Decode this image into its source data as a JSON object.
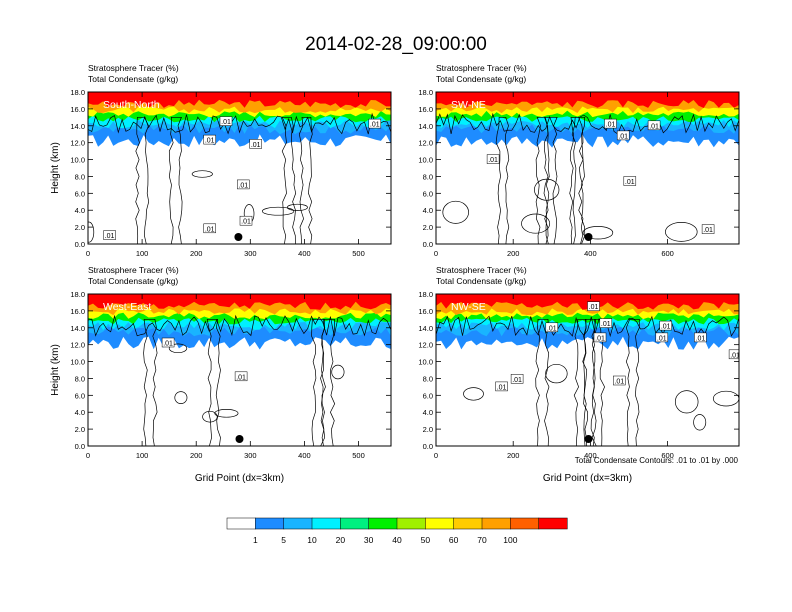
{
  "figure": {
    "title": "2014-02-28_09:00:00"
  },
  "chart_data": [
    {
      "type": "heatmap",
      "label": "South-North",
      "field_titles": [
        "Stratosphere Tracer   (%)",
        "Total Condensate   (g/kg)"
      ],
      "xlabel": "",
      "ylabel": "Height (km)",
      "xlim": [
        0,
        560
      ],
      "ylim": [
        0,
        18
      ],
      "xticks": [
        0,
        100,
        200,
        300,
        400,
        500
      ],
      "yticks": [
        "0.0",
        "2.0",
        "4.0",
        "6.0",
        "8.0",
        "10.0",
        "12.0",
        "14.0",
        "16.0",
        "18.0"
      ],
      "marker_x": 278,
      "contour_labels": [
        {
          "text": ".01",
          "x": 40,
          "y": 1.0
        },
        {
          "text": ".01",
          "x": 225,
          "y": 1.8
        },
        {
          "text": ".01",
          "x": 292,
          "y": 2.7
        },
        {
          "text": ".01",
          "x": 255,
          "y": 14.5
        },
        {
          "text": ".01",
          "x": 310,
          "y": 11.8
        },
        {
          "text": ".01",
          "x": 287,
          "y": 7.0
        },
        {
          "text": ".01",
          "x": 225,
          "y": 12.3
        },
        {
          "text": ".01",
          "x": 530,
          "y": 14.2
        }
      ]
    },
    {
      "type": "heatmap",
      "label": "SW-NE",
      "field_titles": [
        "Stratosphere Tracer   (%)",
        "Total Condensate   (g/kg)"
      ],
      "xlabel": "",
      "ylabel": "",
      "xlim": [
        0,
        785
      ],
      "ylim": [
        0,
        18
      ],
      "xticks": [
        0,
        200,
        400,
        600
      ],
      "yticks": [
        "0.0",
        "2.0",
        "4.0",
        "6.0",
        "8.0",
        "10.0",
        "12.0",
        "14.0",
        "16.0",
        "18.0"
      ],
      "marker_x": 395,
      "contour_labels": [
        {
          "text": ".01",
          "x": 148,
          "y": 10.0
        },
        {
          "text": ".01",
          "x": 452,
          "y": 14.2
        },
        {
          "text": ".01",
          "x": 485,
          "y": 12.8
        },
        {
          "text": ".01",
          "x": 565,
          "y": 14.0
        },
        {
          "text": ".01",
          "x": 502,
          "y": 7.4
        },
        {
          "text": ".01",
          "x": 705,
          "y": 1.7
        }
      ]
    },
    {
      "type": "heatmap",
      "label": "West-East",
      "field_titles": [
        "Stratosphere Tracer   (%)",
        "Total Condensate   (g/kg)"
      ],
      "xlabel": "Grid Point (dx=3km)",
      "ylabel": "Height (km)",
      "xlim": [
        0,
        560
      ],
      "ylim": [
        0,
        18
      ],
      "xticks": [
        0,
        100,
        200,
        300,
        400,
        500
      ],
      "yticks": [
        "0.0",
        "2.0",
        "4.0",
        "6.0",
        "8.0",
        "10.0",
        "12.0",
        "14.0",
        "16.0",
        "18.0"
      ],
      "marker_x": 280,
      "contour_labels": [
        {
          "text": ".01",
          "x": 148,
          "y": 12.2
        },
        {
          "text": ".01",
          "x": 283,
          "y": 8.2
        }
      ]
    },
    {
      "type": "heatmap",
      "label": "NW-SE",
      "field_titles": [
        "Stratosphere Tracer   (%)",
        "Total Condensate   (g/kg)"
      ],
      "xlabel": "Grid Point (dx=3km)",
      "ylabel": "",
      "xlim": [
        0,
        785
      ],
      "ylim": [
        0,
        18
      ],
      "xticks": [
        0,
        200,
        400,
        600
      ],
      "yticks": [
        "0.0",
        "2.0",
        "4.0",
        "6.0",
        "8.0",
        "10.0",
        "12.0",
        "14.0",
        "16.0",
        "18.0"
      ],
      "marker_x": 395,
      "contour_labels": [
        {
          "text": ".01",
          "x": 408,
          "y": 16.5
        },
        {
          "text": ".01",
          "x": 300,
          "y": 14.0
        },
        {
          "text": ".01",
          "x": 440,
          "y": 14.5
        },
        {
          "text": ".01",
          "x": 595,
          "y": 14.2
        },
        {
          "text": ".01",
          "x": 425,
          "y": 12.8
        },
        {
          "text": ".01",
          "x": 585,
          "y": 12.8
        },
        {
          "text": ".01",
          "x": 685,
          "y": 12.8
        },
        {
          "text": ".01",
          "x": 475,
          "y": 7.7
        },
        {
          "text": ".01",
          "x": 210,
          "y": 7.9
        },
        {
          "text": ".01",
          "x": 170,
          "y": 7.0
        },
        {
          "text": ".01",
          "x": 775,
          "y": 10.8
        }
      ]
    }
  ],
  "contour_note": "Total Condensate Contours: .01 to .01 by .000",
  "colorbar": {
    "levels": [
      "1",
      "5",
      "10",
      "20",
      "30",
      "40",
      "50",
      "60",
      "70",
      "100"
    ],
    "colors": [
      "#ffffff",
      "#1e8cff",
      "#19b4ff",
      "#00f0ff",
      "#00f080",
      "#00f000",
      "#a0f000",
      "#ffff00",
      "#ffcc00",
      "#ffa000",
      "#ff6000",
      "#ff0000"
    ]
  }
}
